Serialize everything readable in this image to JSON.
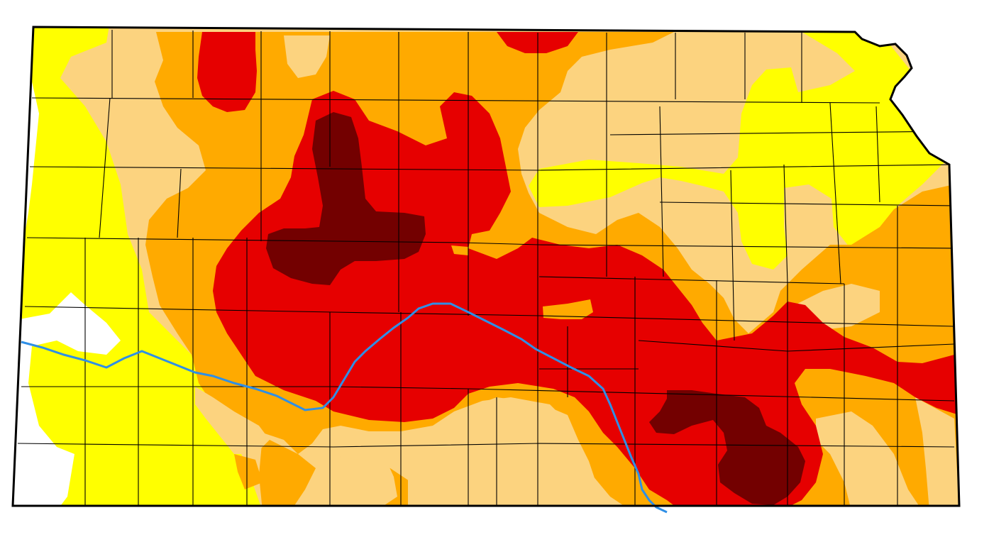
{
  "map": {
    "region": "Kansas",
    "classes": [
      {
        "key": "none",
        "color": "#ffffff"
      },
      {
        "key": "D0",
        "color": "#ffff00"
      },
      {
        "key": "D1",
        "color": "#fcd37f"
      },
      {
        "key": "D2",
        "color": "#ffaa00"
      },
      {
        "key": "D3",
        "color": "#e60000"
      },
      {
        "key": "D4",
        "color": "#730000"
      }
    ],
    "river_color": "#2f8fe6",
    "border_color": "#000000"
  }
}
